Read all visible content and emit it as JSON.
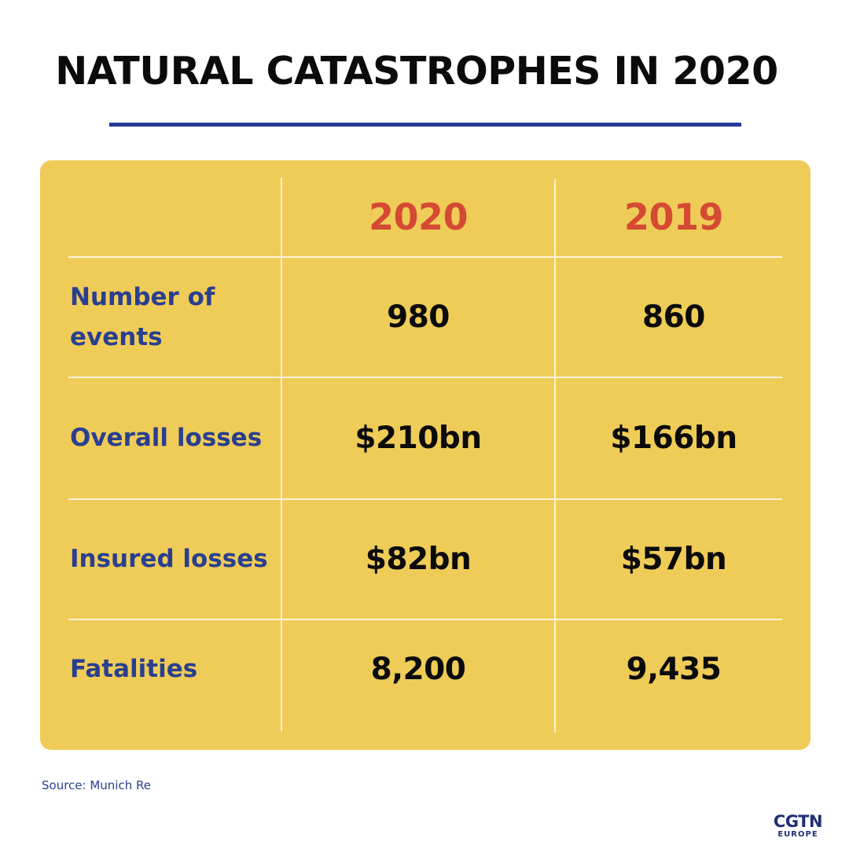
{
  "title": "NATURAL CATASTROPHES IN 2020",
  "source": "Source: Munich Re",
  "logo": {
    "main": "CGTN",
    "sub": "EUROPE"
  },
  "colors": {
    "title_rule": "#26399a",
    "card_background": "#efcc58",
    "year_header": "#d44a33",
    "row_label": "#2a3f8f",
    "value_text": "#0b0b0b"
  },
  "chart_data": {
    "type": "table",
    "columns": [
      "2020",
      "2019"
    ],
    "rows": [
      {
        "label": "Number of events",
        "values": [
          "980",
          "860"
        ]
      },
      {
        "label": "Overall losses",
        "values": [
          "$210bn",
          "$166bn"
        ]
      },
      {
        "label": "Insured losses",
        "values": [
          "$82bn",
          "$57bn"
        ]
      },
      {
        "label": "Fatalities",
        "values": [
          "8,200",
          "9,435"
        ]
      }
    ]
  }
}
